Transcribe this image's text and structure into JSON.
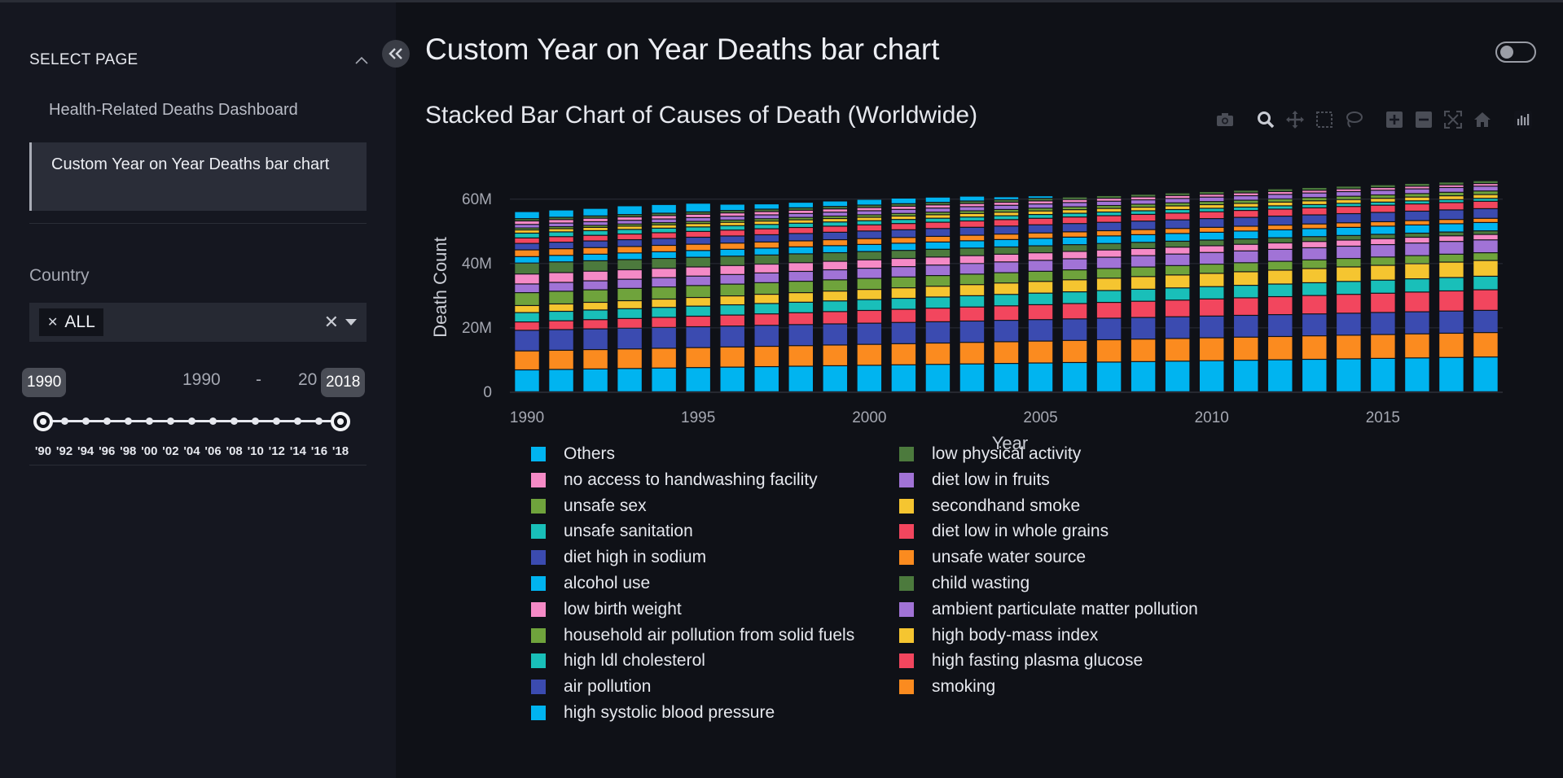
{
  "sidebar": {
    "select_page_title": "SELECT PAGE",
    "nav_items": [
      {
        "label": "Health-Related Deaths Dashboard"
      },
      {
        "label": "Custom Year on Year Deaths bar chart"
      }
    ],
    "country_label": "Country",
    "country_chip": "ALL",
    "range": {
      "start_label": "1990",
      "dash": "-",
      "end_label": "2018",
      "start_badge": "1990",
      "end_badge": "2018",
      "end_partial": "20"
    },
    "slider_ticks": [
      "'90",
      "'92",
      "'94",
      "'96",
      "'98",
      "'00",
      "'02",
      "'04",
      "'06",
      "'08",
      "'10",
      "'12",
      "'14",
      "'16",
      "'18"
    ]
  },
  "main": {
    "page_title": "Custom Year on Year Deaths bar chart",
    "chart_title": "Stacked Bar Chart of Causes of Death (Worldwide)"
  },
  "modebar_icons": [
    "camera-icon",
    "zoom-icon",
    "pan-icon",
    "box-select-icon",
    "lasso-icon",
    "zoom-in-icon",
    "zoom-out-icon",
    "autoscale-icon",
    "reset-axes-icon",
    "plotly-logo-icon"
  ],
  "colors": {
    "cyan": "#00b4f0",
    "pink": "#f58ac6",
    "green": "#6fa33c",
    "teal": "#19bfb9",
    "navy": "#3b4bb0",
    "darkgreen": "#4c7a3d",
    "purple": "#a173d6",
    "yellow": "#f5c530",
    "red": "#f2465e",
    "orange": "#fb8b1f"
  },
  "chart_data": {
    "type": "bar",
    "stacked": true,
    "title": "Stacked Bar Chart of Causes of Death (Worldwide)",
    "xlabel": "Year",
    "ylabel": "Death Count",
    "ylim": [
      0,
      65000000
    ],
    "y_ticks": [
      "0",
      "20M",
      "40M",
      "60M"
    ],
    "x_ticks": [
      "1990",
      "1995",
      "2000",
      "2005",
      "2010",
      "2015"
    ],
    "categories": [
      1990,
      1991,
      1992,
      1993,
      1994,
      1995,
      1996,
      1997,
      1998,
      1999,
      2000,
      2001,
      2002,
      2003,
      2004,
      2005,
      2006,
      2007,
      2008,
      2009,
      2010,
      2011,
      2012,
      2013,
      2014,
      2015,
      2016,
      2017,
      2018
    ],
    "totals": [
      56000000,
      56500000,
      57000000,
      57800000,
      58200000,
      58600000,
      58300000,
      58400000,
      58900000,
      59300000,
      59800000,
      60200000,
      60500000,
      60800000,
      60600000,
      60900000,
      60700000,
      60500000,
      61000000,
      61200000,
      61300000,
      61600000,
      61900000,
      62200000,
      62600000,
      63200000,
      63700000,
      64300000,
      65200000
    ],
    "series": [
      {
        "name": "high systolic blood pressure",
        "color": "#00b4f0",
        "start": 6800000,
        "end": 10800000
      },
      {
        "name": "smoking",
        "color": "#fb8b1f",
        "start": 5900000,
        "end": 7600000
      },
      {
        "name": "air pollution",
        "color": "#3b4bb0",
        "start": 6400000,
        "end": 6900000
      },
      {
        "name": "high fasting plasma glucose",
        "color": "#f2465e",
        "start": 2600000,
        "end": 6400000
      },
      {
        "name": "high ldl cholesterol",
        "color": "#19bfb9",
        "start": 2900000,
        "end": 4200000
      },
      {
        "name": "high body-mass index",
        "color": "#f5c530",
        "start": 2200000,
        "end": 4900000
      },
      {
        "name": "household air pollution from solid fuels",
        "color": "#6fa33c",
        "start": 4000000,
        "end": 2400000
      },
      {
        "name": "ambient particulate matter pollution",
        "color": "#a173d6",
        "start": 2700000,
        "end": 4000000
      },
      {
        "name": "low birth weight",
        "color": "#f58ac6",
        "start": 3100000,
        "end": 1700000
      },
      {
        "name": "child wasting",
        "color": "#4c7a3d",
        "start": 3400000,
        "end": 1100000
      },
      {
        "name": "alcohol use",
        "color": "#00b4f0",
        "start": 2000000,
        "end": 2600000
      },
      {
        "name": "unsafe water source",
        "color": "#fb8b1f",
        "start": 2100000,
        "end": 1300000
      },
      {
        "name": "diet high in sodium",
        "color": "#3b4bb0",
        "start": 2000000,
        "end": 3000000
      },
      {
        "name": "diet low in whole grains",
        "color": "#f2465e",
        "start": 1700000,
        "end": 2300000
      },
      {
        "name": "unsafe sanitation",
        "color": "#19bfb9",
        "start": 1500000,
        "end": 900000
      },
      {
        "name": "secondhand smoke",
        "color": "#f5c530",
        "start": 1000000,
        "end": 1200000
      },
      {
        "name": "unsafe sex",
        "color": "#6fa33c",
        "start": 600000,
        "end": 1100000
      },
      {
        "name": "diet low in fruits",
        "color": "#a173d6",
        "start": 1100000,
        "end": 1500000
      },
      {
        "name": "no access to handwashing facility",
        "color": "#f58ac6",
        "start": 1100000,
        "end": 800000
      },
      {
        "name": "low physical activity",
        "color": "#4c7a3d",
        "start": 700000,
        "end": 900000
      },
      {
        "name": "Others",
        "color": "#00b4f0",
        "start": 0,
        "end": 0
      }
    ],
    "legend_order": [
      "Others",
      "no access to handwashing facility",
      "unsafe sex",
      "unsafe sanitation",
      "diet high in sodium",
      "alcohol use",
      "low birth weight",
      "household air pollution from solid fuels",
      "high ldl cholesterol",
      "air pollution",
      "high systolic blood pressure",
      "low physical activity",
      "diet low in fruits",
      "secondhand smoke",
      "diet low in whole grains",
      "unsafe water source",
      "child wasting",
      "ambient particulate matter pollution",
      "high body-mass index",
      "high fasting plasma glucose",
      "smoking"
    ],
    "legend_placement": "bottom",
    "grid": true
  }
}
